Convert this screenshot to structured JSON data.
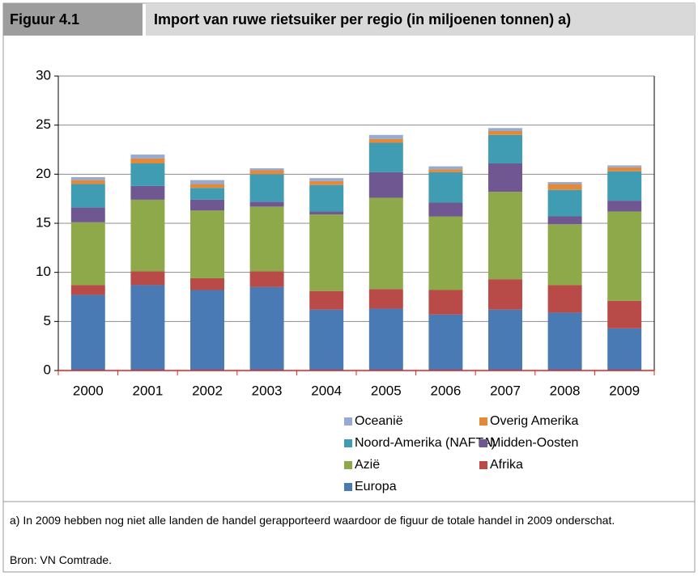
{
  "header": {
    "figure": "Figuur 4.1",
    "title": "Import van ruwe rietsuiker per regio (in miljoenen tonnen) a)"
  },
  "chart_data": {
    "type": "stacked-bar",
    "categories": [
      "2000",
      "2001",
      "2002",
      "2003",
      "2004",
      "2005",
      "2006",
      "2007",
      "2008",
      "2009"
    ],
    "series": [
      {
        "name": "Europa",
        "color": "#4a7ab4",
        "values": [
          7.7,
          8.7,
          8.2,
          8.5,
          6.2,
          6.3,
          5.7,
          6.2,
          5.9,
          4.3
        ]
      },
      {
        "name": "Afrika",
        "color": "#b84a47",
        "values": [
          1.0,
          1.4,
          1.2,
          1.6,
          1.9,
          2.0,
          2.5,
          3.1,
          2.8,
          2.8
        ]
      },
      {
        "name": "Azië",
        "color": "#8ea94a",
        "values": [
          6.4,
          7.3,
          6.9,
          6.6,
          7.8,
          9.3,
          7.5,
          8.9,
          6.2,
          9.1
        ]
      },
      {
        "name": "Midden-Oosten",
        "color": "#6f5792",
        "values": [
          1.5,
          1.4,
          1.1,
          0.5,
          0.3,
          2.6,
          1.4,
          2.9,
          0.8,
          1.1
        ]
      },
      {
        "name": "Noord-Amerika (NAFTA)",
        "color": "#3f9cb2",
        "values": [
          2.4,
          2.3,
          1.2,
          2.8,
          2.7,
          3.0,
          3.1,
          2.9,
          2.7,
          3.0
        ]
      },
      {
        "name": "Overig Amerika",
        "color": "#e38a3a",
        "values": [
          0.4,
          0.5,
          0.4,
          0.4,
          0.4,
          0.4,
          0.3,
          0.4,
          0.6,
          0.4
        ]
      },
      {
        "name": "Oceanië",
        "color": "#95abd3",
        "values": [
          0.3,
          0.4,
          0.4,
          0.2,
          0.3,
          0.4,
          0.3,
          0.3,
          0.2,
          0.2
        ]
      }
    ],
    "ylim": [
      0,
      30
    ],
    "yticks": [
      0,
      5,
      10,
      15,
      20,
      25,
      30
    ],
    "grid": true
  },
  "footer": {
    "note": "a) In 2009 hebben nog niet alle landen de handel gerapporteerd waardoor de figuur de totale handel in 2009 onderschat.",
    "source": "Bron: VN Comtrade."
  }
}
